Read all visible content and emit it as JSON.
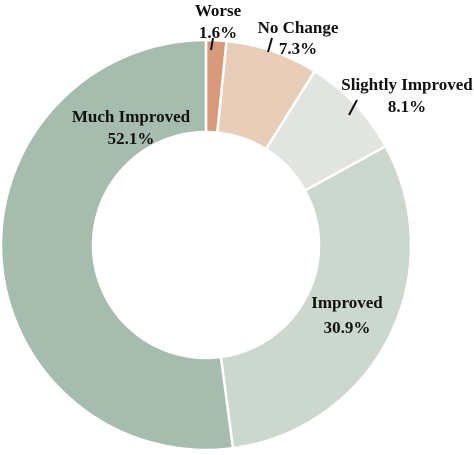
{
  "chart_data": {
    "type": "pie",
    "subtype": "donut",
    "title": "",
    "series": [
      {
        "slices": [
          {
            "name": "Worse",
            "value": 1.6,
            "value_label": "1.6%",
            "color": "#D79B7B"
          },
          {
            "name": "No Change",
            "value": 7.3,
            "value_label": "7.3%",
            "color": "#E8CDB8"
          },
          {
            "name": "Slightly Improved",
            "value": 8.1,
            "value_label": "8.1%",
            "color": "#E2E4DF"
          },
          {
            "name": "Improved",
            "value": 30.9,
            "value_label": "30.9%",
            "color": "#CBD7CF"
          },
          {
            "name": "Much Improved",
            "value": 52.1,
            "value_label": "52.1%",
            "color": "#A6BCAE"
          }
        ]
      }
    ],
    "start": "12 o'clock",
    "direction": "clockwise",
    "legend": "none"
  }
}
